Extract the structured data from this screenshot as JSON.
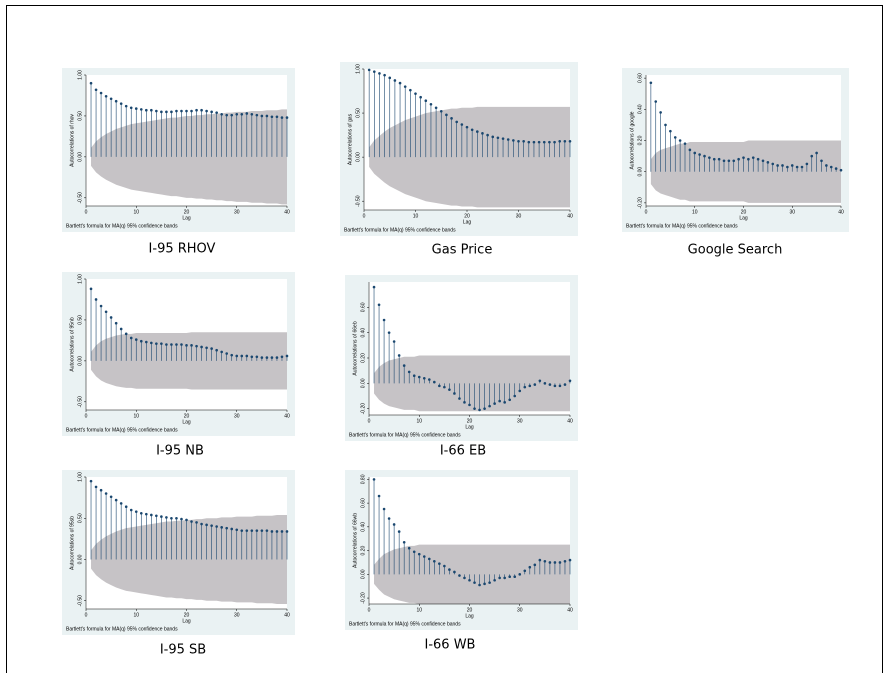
{
  "chart_data": [
    {
      "type": "acf",
      "caption": "I-95 RHOV",
      "ylabel": "Autocorrelations of rhov",
      "xlabel": "Lag",
      "note": "Bartlett's formula for MA(q) 95% confidence bands",
      "xlim": [
        0,
        40
      ],
      "xticks": [
        0,
        10,
        20,
        30,
        40
      ],
      "ylim": [
        -0.6,
        1.0
      ],
      "yticks": [
        {
          "value": -0.5,
          "label": "-0.50"
        },
        {
          "value": 0,
          "label": "0.00"
        },
        {
          "value": 0.5,
          "label": "0.50"
        },
        {
          "value": 1,
          "label": "1.00"
        }
      ],
      "color": "#1a476f",
      "band_color": "#c6c3c6",
      "x": [
        1,
        2,
        3,
        4,
        5,
        6,
        7,
        8,
        9,
        10,
        11,
        12,
        13,
        14,
        15,
        16,
        17,
        18,
        19,
        20,
        21,
        22,
        23,
        24,
        25,
        26,
        27,
        28,
        29,
        30,
        31,
        32,
        33,
        34,
        35,
        36,
        37,
        38,
        39,
        40
      ],
      "values": [
        0.9,
        0.82,
        0.78,
        0.74,
        0.71,
        0.68,
        0.65,
        0.62,
        0.6,
        0.59,
        0.58,
        0.57,
        0.57,
        0.56,
        0.55,
        0.55,
        0.55,
        0.56,
        0.56,
        0.56,
        0.56,
        0.57,
        0.57,
        0.56,
        0.55,
        0.54,
        0.52,
        0.51,
        0.51,
        0.52,
        0.52,
        0.53,
        0.52,
        0.51,
        0.5,
        0.5,
        0.49,
        0.49,
        0.48,
        0.48
      ],
      "band": [
        0.11,
        0.19,
        0.24,
        0.28,
        0.31,
        0.34,
        0.36,
        0.38,
        0.4,
        0.41,
        0.42,
        0.43,
        0.44,
        0.45,
        0.46,
        0.47,
        0.48,
        0.48,
        0.49,
        0.5,
        0.5,
        0.51,
        0.51,
        0.52,
        0.52,
        0.53,
        0.53,
        0.54,
        0.54,
        0.55,
        0.55,
        0.55,
        0.56,
        0.56,
        0.56,
        0.57,
        0.57,
        0.57,
        0.58,
        0.58
      ]
    },
    {
      "type": "acf",
      "caption": "Gas Price",
      "ylabel": "Autocorrelations of gas",
      "xlabel": "Lag",
      "note": "Bartlett's formula for MA(q) 95% confidence bands",
      "xlim": [
        0,
        40
      ],
      "xticks": [
        0,
        10,
        20,
        30,
        40
      ],
      "ylim": [
        -0.6,
        1.0
      ],
      "yticks": [
        {
          "value": -0.5,
          "label": "-0.50"
        },
        {
          "value": 0,
          "label": "0.00"
        },
        {
          "value": 0.5,
          "label": "0.50"
        },
        {
          "value": 1,
          "label": "1.00"
        }
      ],
      "color": "#1a476f",
      "band_color": "#c6c3c6",
      "x": [
        1,
        2,
        3,
        4,
        5,
        6,
        7,
        8,
        9,
        10,
        11,
        12,
        13,
        14,
        15,
        16,
        17,
        18,
        19,
        20,
        21,
        22,
        23,
        24,
        25,
        26,
        27,
        28,
        29,
        30,
        31,
        32,
        33,
        34,
        35,
        36,
        37,
        38,
        39,
        40
      ],
      "values": [
        0.99,
        0.97,
        0.95,
        0.93,
        0.9,
        0.87,
        0.84,
        0.8,
        0.76,
        0.72,
        0.68,
        0.64,
        0.6,
        0.56,
        0.52,
        0.48,
        0.44,
        0.4,
        0.37,
        0.34,
        0.31,
        0.29,
        0.27,
        0.25,
        0.23,
        0.22,
        0.21,
        0.2,
        0.19,
        0.18,
        0.18,
        0.17,
        0.17,
        0.17,
        0.17,
        0.17,
        0.17,
        0.18,
        0.18,
        0.18
      ],
      "band": [
        0.11,
        0.19,
        0.24,
        0.29,
        0.33,
        0.36,
        0.39,
        0.42,
        0.44,
        0.46,
        0.48,
        0.5,
        0.51,
        0.52,
        0.53,
        0.54,
        0.55,
        0.55,
        0.56,
        0.56,
        0.56,
        0.57,
        0.57,
        0.57,
        0.57,
        0.57,
        0.57,
        0.57,
        0.57,
        0.57,
        0.57,
        0.57,
        0.57,
        0.57,
        0.57,
        0.57,
        0.57,
        0.57,
        0.57,
        0.57
      ]
    },
    {
      "type": "acf",
      "caption": "Google Search",
      "ylabel": "Autocorrelations of google",
      "xlabel": "Lag",
      "note": "Bartlett's formula for MA(q) 95% confidence bands",
      "xlim": [
        0,
        40
      ],
      "xticks": [
        0,
        10,
        20,
        30,
        40
      ],
      "ylim": [
        -0.22,
        0.62
      ],
      "yticks": [
        {
          "value": -0.2,
          "label": "-0.20"
        },
        {
          "value": 0,
          "label": "0.00"
        },
        {
          "value": 0.2,
          "label": "0.20"
        },
        {
          "value": 0.4,
          "label": "0.40"
        },
        {
          "value": 0.6,
          "label": "0.60"
        }
      ],
      "color": "#1a476f",
      "band_color": "#c6c3c6",
      "x": [
        1,
        2,
        3,
        4,
        5,
        6,
        7,
        8,
        9,
        10,
        11,
        12,
        13,
        14,
        15,
        16,
        17,
        18,
        19,
        20,
        21,
        22,
        23,
        24,
        25,
        26,
        27,
        28,
        29,
        30,
        31,
        32,
        33,
        34,
        35,
        36,
        37,
        38,
        39,
        40
      ],
      "values": [
        0.57,
        0.45,
        0.38,
        0.3,
        0.26,
        0.22,
        0.2,
        0.18,
        0.14,
        0.12,
        0.11,
        0.1,
        0.09,
        0.08,
        0.08,
        0.07,
        0.07,
        0.07,
        0.08,
        0.09,
        0.08,
        0.09,
        0.08,
        0.07,
        0.06,
        0.05,
        0.04,
        0.04,
        0.03,
        0.04,
        0.03,
        0.03,
        0.05,
        0.1,
        0.12,
        0.07,
        0.04,
        0.03,
        0.02,
        0.01
      ],
      "band": [
        0.08,
        0.12,
        0.14,
        0.15,
        0.16,
        0.17,
        0.18,
        0.18,
        0.19,
        0.19,
        0.19,
        0.19,
        0.19,
        0.19,
        0.19,
        0.19,
        0.19,
        0.19,
        0.19,
        0.19,
        0.2,
        0.2,
        0.2,
        0.2,
        0.2,
        0.2,
        0.2,
        0.2,
        0.2,
        0.2,
        0.2,
        0.2,
        0.2,
        0.2,
        0.2,
        0.2,
        0.2,
        0.2,
        0.2,
        0.2
      ]
    },
    {
      "type": "acf",
      "caption": "I-95 NB",
      "ylabel": "Autocorrelations of 95nb",
      "xlabel": "Lag",
      "note": "Bartlett's formula for MA(q) 95% confidence bands",
      "xlim": [
        0,
        40
      ],
      "xticks": [
        0,
        10,
        20,
        30,
        40
      ],
      "ylim": [
        -0.6,
        1.0
      ],
      "yticks": [
        {
          "value": -0.5,
          "label": "-0.50"
        },
        {
          "value": 0,
          "label": "0.00"
        },
        {
          "value": 0.5,
          "label": "0.50"
        },
        {
          "value": 1,
          "label": "1.00"
        }
      ],
      "color": "#1a476f",
      "band_color": "#c6c3c6",
      "x": [
        1,
        2,
        3,
        4,
        5,
        6,
        7,
        8,
        9,
        10,
        11,
        12,
        13,
        14,
        15,
        16,
        17,
        18,
        19,
        20,
        21,
        22,
        23,
        24,
        25,
        26,
        27,
        28,
        29,
        30,
        31,
        32,
        33,
        34,
        35,
        36,
        37,
        38,
        39,
        40
      ],
      "values": [
        0.88,
        0.75,
        0.67,
        0.6,
        0.53,
        0.46,
        0.39,
        0.33,
        0.28,
        0.26,
        0.24,
        0.23,
        0.22,
        0.21,
        0.21,
        0.2,
        0.2,
        0.2,
        0.2,
        0.19,
        0.19,
        0.18,
        0.17,
        0.16,
        0.15,
        0.13,
        0.11,
        0.09,
        0.07,
        0.06,
        0.06,
        0.06,
        0.05,
        0.05,
        0.04,
        0.04,
        0.04,
        0.04,
        0.05,
        0.06
      ],
      "band": [
        0.11,
        0.19,
        0.24,
        0.27,
        0.29,
        0.31,
        0.32,
        0.33,
        0.33,
        0.34,
        0.34,
        0.34,
        0.34,
        0.34,
        0.34,
        0.34,
        0.34,
        0.34,
        0.34,
        0.34,
        0.35,
        0.35,
        0.35,
        0.35,
        0.35,
        0.35,
        0.35,
        0.35,
        0.35,
        0.35,
        0.35,
        0.35,
        0.35,
        0.35,
        0.35,
        0.35,
        0.35,
        0.35,
        0.35,
        0.35
      ]
    },
    {
      "type": "acf",
      "caption": "I-66 EB",
      "ylabel": "Autocorrelations of 66eb",
      "xlabel": "Lag",
      "note": "Bartlett's formula for MA(q) 95% confidence bands",
      "xlim": [
        0,
        40
      ],
      "xticks": [
        0,
        10,
        20,
        30,
        40
      ],
      "ylim": [
        -0.25,
        0.8
      ],
      "yticks": [
        {
          "value": -0.2,
          "label": "-0.20"
        },
        {
          "value": 0,
          "label": "0.00"
        },
        {
          "value": 0.2,
          "label": "0.20"
        },
        {
          "value": 0.4,
          "label": "0.40"
        },
        {
          "value": 0.6,
          "label": "0.60"
        }
      ],
      "color": "#1a476f",
      "band_color": "#c6c3c6",
      "x": [
        1,
        2,
        3,
        4,
        5,
        6,
        7,
        8,
        9,
        10,
        11,
        12,
        13,
        14,
        15,
        16,
        17,
        18,
        19,
        20,
        21,
        22,
        23,
        24,
        25,
        26,
        27,
        28,
        29,
        30,
        31,
        32,
        33,
        34,
        35,
        36,
        37,
        38,
        39,
        40
      ],
      "values": [
        0.76,
        0.62,
        0.5,
        0.4,
        0.33,
        0.22,
        0.14,
        0.09,
        0.06,
        0.05,
        0.04,
        0.03,
        0.01,
        -0.02,
        -0.03,
        -0.05,
        -0.08,
        -0.12,
        -0.15,
        -0.17,
        -0.2,
        -0.21,
        -0.2,
        -0.18,
        -0.16,
        -0.14,
        -0.15,
        -0.13,
        -0.1,
        -0.06,
        -0.03,
        -0.02,
        -0.01,
        0.02,
        0.0,
        -0.01,
        -0.02,
        -0.02,
        -0.01,
        0.02
      ],
      "band": [
        0.08,
        0.13,
        0.16,
        0.18,
        0.19,
        0.2,
        0.21,
        0.21,
        0.21,
        0.22,
        0.22,
        0.22,
        0.22,
        0.22,
        0.22,
        0.22,
        0.22,
        0.22,
        0.22,
        0.22,
        0.22,
        0.22,
        0.22,
        0.22,
        0.22,
        0.22,
        0.22,
        0.22,
        0.22,
        0.22,
        0.22,
        0.22,
        0.22,
        0.22,
        0.22,
        0.22,
        0.22,
        0.22,
        0.22,
        0.22
      ]
    },
    {
      "type": "acf",
      "caption": "I-95 SB",
      "ylabel": "Autocorrelations of 95sb",
      "xlabel": "Lag",
      "note": "Bartlett's formula for MA(q) 95% confidence bands",
      "xlim": [
        0,
        40
      ],
      "xticks": [
        0,
        10,
        20,
        30,
        40
      ],
      "ylim": [
        -0.6,
        1.0
      ],
      "yticks": [
        {
          "value": -0.5,
          "label": "-0.50"
        },
        {
          "value": 0,
          "label": "0.00"
        },
        {
          "value": 0.5,
          "label": "0.50"
        },
        {
          "value": 1,
          "label": "1.00"
        }
      ],
      "color": "#1a476f",
      "band_color": "#c6c3c6",
      "x": [
        1,
        2,
        3,
        4,
        5,
        6,
        7,
        8,
        9,
        10,
        11,
        12,
        13,
        14,
        15,
        16,
        17,
        18,
        19,
        20,
        21,
        22,
        23,
        24,
        25,
        26,
        27,
        28,
        29,
        30,
        31,
        32,
        33,
        34,
        35,
        36,
        37,
        38,
        39,
        40
      ],
      "values": [
        0.95,
        0.88,
        0.84,
        0.8,
        0.76,
        0.72,
        0.68,
        0.64,
        0.6,
        0.58,
        0.56,
        0.55,
        0.54,
        0.53,
        0.52,
        0.51,
        0.5,
        0.5,
        0.49,
        0.48,
        0.46,
        0.45,
        0.43,
        0.42,
        0.41,
        0.4,
        0.39,
        0.38,
        0.37,
        0.36,
        0.35,
        0.35,
        0.35,
        0.35,
        0.35,
        0.35,
        0.34,
        0.34,
        0.34,
        0.34
      ],
      "band": [
        0.11,
        0.19,
        0.24,
        0.28,
        0.31,
        0.34,
        0.36,
        0.38,
        0.39,
        0.4,
        0.41,
        0.42,
        0.43,
        0.44,
        0.45,
        0.46,
        0.46,
        0.47,
        0.47,
        0.48,
        0.48,
        0.49,
        0.49,
        0.5,
        0.5,
        0.5,
        0.51,
        0.51,
        0.51,
        0.52,
        0.52,
        0.52,
        0.52,
        0.53,
        0.53,
        0.53,
        0.53,
        0.54,
        0.54,
        0.54
      ]
    },
    {
      "type": "acf",
      "caption": "I-66 WB",
      "ylabel": "Autocorrelations of 66wb",
      "xlabel": "Lag",
      "note": "Bartlett's formula for MA(q) 95% confidence bands",
      "xlim": [
        0,
        40
      ],
      "xticks": [
        0,
        10,
        20,
        30,
        40
      ],
      "ylim": [
        -0.25,
        0.82
      ],
      "yticks": [
        {
          "value": -0.2,
          "label": "-0.20"
        },
        {
          "value": 0,
          "label": "0.00"
        },
        {
          "value": 0.2,
          "label": "0.20"
        },
        {
          "value": 0.4,
          "label": "0.40"
        },
        {
          "value": 0.6,
          "label": "0.60"
        },
        {
          "value": 0.8,
          "label": "0.80"
        }
      ],
      "color": "#1a476f",
      "band_color": "#c6c3c6",
      "x": [
        1,
        2,
        3,
        4,
        5,
        6,
        7,
        8,
        9,
        10,
        11,
        12,
        13,
        14,
        15,
        16,
        17,
        18,
        19,
        20,
        21,
        22,
        23,
        24,
        25,
        26,
        27,
        28,
        29,
        30,
        31,
        32,
        33,
        34,
        35,
        36,
        37,
        38,
        39,
        40
      ],
      "values": [
        0.8,
        0.66,
        0.55,
        0.47,
        0.42,
        0.36,
        0.27,
        0.22,
        0.19,
        0.17,
        0.15,
        0.13,
        0.11,
        0.09,
        0.07,
        0.04,
        0.02,
        -0.01,
        -0.03,
        -0.05,
        -0.07,
        -0.09,
        -0.08,
        -0.07,
        -0.05,
        -0.03,
        -0.03,
        -0.02,
        -0.02,
        0.0,
        0.03,
        0.06,
        0.08,
        0.12,
        0.11,
        0.1,
        0.1,
        0.1,
        0.11,
        0.12
      ],
      "band": [
        0.08,
        0.13,
        0.17,
        0.19,
        0.21,
        0.22,
        0.23,
        0.24,
        0.24,
        0.25,
        0.25,
        0.25,
        0.25,
        0.25,
        0.25,
        0.25,
        0.25,
        0.25,
        0.25,
        0.25,
        0.25,
        0.25,
        0.25,
        0.25,
        0.25,
        0.25,
        0.25,
        0.25,
        0.25,
        0.25,
        0.25,
        0.25,
        0.25,
        0.25,
        0.25,
        0.25,
        0.25,
        0.25,
        0.25,
        0.25
      ]
    }
  ]
}
